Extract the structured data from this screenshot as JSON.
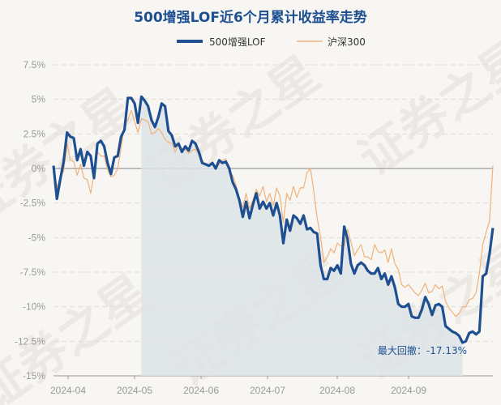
{
  "chart_data": {
    "type": "line",
    "title": "500增强LOF近6个月累计收益率走势",
    "x_tick_labels": [
      "2024-04",
      "2024-05",
      "2024-06",
      "2024-07",
      "2024-08",
      "2024-09"
    ],
    "y_tick_labels": [
      "7.5%",
      "5%",
      "2.5%",
      "0%",
      "-2.5%",
      "-5%",
      "-7.5%",
      "-10%",
      "-12.5%",
      "-15%"
    ],
    "ylim": [
      -15,
      7.5
    ],
    "annotation": "最大回撤：-17.13%",
    "watermark": "证券之星",
    "grid": true,
    "legend_position": "top-center",
    "series": [
      {
        "name": "500增强LOF",
        "color": "#1d4f91",
        "values": [
          0.2,
          -2.2,
          -0.8,
          0.5,
          2.6,
          2.3,
          2.2,
          0.6,
          1.4,
          0.2,
          1.2,
          0.9,
          -0.7,
          1.8,
          2.0,
          1.6,
          0.4,
          -0.4,
          0.8,
          0.9,
          2.3,
          2.8,
          5.1,
          5.1,
          4.7,
          3.3,
          5.2,
          4.9,
          4.5,
          3.5,
          3.0,
          3.7,
          4.7,
          4.5,
          2.7,
          2.4,
          1.6,
          1.8,
          1.2,
          1.6,
          1.3,
          2.0,
          1.8,
          1.2,
          0.4,
          0.3,
          0.2,
          0.4,
          0.0,
          0.6,
          0.4,
          0.5,
          0.0,
          -1.0,
          -1.5,
          -2.3,
          -3.5,
          -2.4,
          -3.6,
          -2.6,
          -1.8,
          -2.9,
          -2.4,
          -2.9,
          -2.5,
          -3.4,
          -2.5,
          -3.4,
          -5.4,
          -3.7,
          -4.5,
          -3.4,
          -3.6,
          -4.0,
          -3.4,
          -4.4,
          -4.3,
          -4.6,
          -4.7,
          -7.0,
          -8.0,
          -8.0,
          -7.2,
          -7.4,
          -7.0,
          -7.6,
          -4.2,
          -5.1,
          -6.9,
          -7.6,
          -7.0,
          -6.8,
          -7.0,
          -7.4,
          -7.6,
          -7.6,
          -7.2,
          -8.0,
          -7.6,
          -8.4,
          -7.8,
          -8.6,
          -9.8,
          -10.0,
          -10.0,
          -9.8,
          -10.7,
          -10.8,
          -10.8,
          -10.2,
          -9.3,
          -9.8,
          -10.6,
          -9.9,
          -9.8,
          -10.0,
          -11.4,
          -11.6,
          -11.8,
          -11.9,
          -12.1,
          -12.6,
          -12.5,
          -11.9,
          -11.8,
          -12.0,
          -11.8,
          -7.8,
          -7.6,
          -6.2,
          -4.3
        ]
      },
      {
        "name": "沪深300",
        "color": "#f0b27a",
        "values": [
          0.2,
          -1.4,
          -0.6,
          -0.2,
          1.8,
          0.6,
          0.5,
          -0.5,
          0.3,
          -0.7,
          -0.8,
          -1.8,
          -0.4,
          1.2,
          0.9,
          0.9,
          -0.1,
          -0.6,
          -0.5,
          0.0,
          1.5,
          3.2,
          3.5,
          4.2,
          3.4,
          2.6,
          3.6,
          3.5,
          3.4,
          2.5,
          2.6,
          2.9,
          2.6,
          2.1,
          1.9,
          1.8,
          1.2,
          1.8,
          1.4,
          1.4,
          1.1,
          1.3,
          1.4,
          1.0,
          0.6,
          0.3,
          0.2,
          0.4,
          0.1,
          0.3,
          0.6,
          0.7,
          -0.3,
          -0.5,
          -1.2,
          -2.2,
          -2.8,
          -1.8,
          -2.9,
          -2.3,
          -1.5,
          -2.0,
          -1.3,
          -2.4,
          -1.8,
          -2.7,
          -1.4,
          -2.0,
          -3.9,
          -1.8,
          -2.3,
          -1.3,
          -2.1,
          -1.4,
          -1.4,
          -0.3,
          0.0,
          -1.6,
          -3.6,
          -4.9,
          -6.8,
          -6.4,
          -5.8,
          -6.1,
          -5.4,
          -5.6,
          -5.6,
          -4.4,
          -5.3,
          -6.3,
          -5.9,
          -5.5,
          -6.4,
          -6.4,
          -6.6,
          -5.5,
          -6.0,
          -6.1,
          -5.9,
          -6.8,
          -5.8,
          -6.9,
          -7.3,
          -8.4,
          -8.6,
          -8.4,
          -8.7,
          -9.0,
          -9.2,
          -8.8,
          -8.3,
          -9.0,
          -8.9,
          -8.4,
          -8.7,
          -8.5,
          -9.6,
          -10.1,
          -10.4,
          -10.7,
          -10.5,
          -10.0,
          -10.0,
          -9.5,
          -9.4,
          -9.0,
          -7.6,
          -5.5,
          -4.6,
          -3.8,
          0.2
        ]
      }
    ]
  }
}
